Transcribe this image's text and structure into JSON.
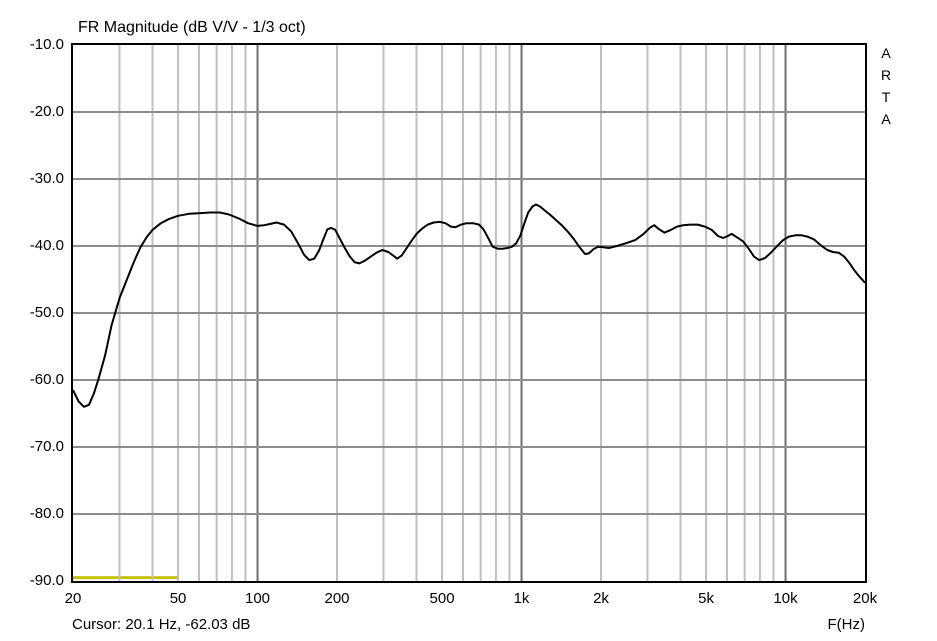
{
  "window": {
    "app": "ARTA",
    "brand_letters": [
      "A",
      "R",
      "T",
      "A"
    ]
  },
  "title": "FR Magnitude (dB V/V - 1/3 oct)",
  "status": {
    "cursor_text": "Cursor: 20.1 Hz, -62.03 dB"
  },
  "colors": {
    "background": "#ffffff",
    "border": "#000000",
    "grid_minor": "#c0c0c0",
    "grid_decade": "#6e6e6e",
    "grid_horizontal": "#8c8c8c",
    "curve": "#000000",
    "overlay": "#c3c30a"
  },
  "axes": {
    "x": {
      "unit_label": "F(Hz)",
      "scale": "log",
      "min": 20,
      "max": 20000,
      "ticks": [
        {
          "f": 20,
          "label": "20"
        },
        {
          "f": 50,
          "label": "50"
        },
        {
          "f": 100,
          "label": "100"
        },
        {
          "f": 200,
          "label": "200"
        },
        {
          "f": 500,
          "label": "500"
        },
        {
          "f": 1000,
          "label": "1k"
        },
        {
          "f": 2000,
          "label": "2k"
        },
        {
          "f": 5000,
          "label": "5k"
        },
        {
          "f": 10000,
          "label": "10k"
        },
        {
          "f": 20000,
          "label": "20k"
        }
      ],
      "minor_gridlines": [
        30,
        40,
        50,
        60,
        70,
        80,
        90,
        200,
        300,
        400,
        500,
        600,
        700,
        800,
        900,
        2000,
        3000,
        4000,
        5000,
        6000,
        7000,
        8000,
        9000
      ],
      "decade_gridlines": [
        100,
        1000,
        10000
      ]
    },
    "y": {
      "unit": "dB",
      "min": -90,
      "max": -10,
      "ticks": [
        {
          "v": -10,
          "label": "-10.0"
        },
        {
          "v": -20,
          "label": "-20.0"
        },
        {
          "v": -30,
          "label": "-30.0"
        },
        {
          "v": -40,
          "label": "-40.0"
        },
        {
          "v": -50,
          "label": "-50.0"
        },
        {
          "v": -60,
          "label": "-60.0"
        },
        {
          "v": -70,
          "label": "-70.0"
        },
        {
          "v": -80,
          "label": "-80.0"
        },
        {
          "v": -90,
          "label": "-90.0"
        }
      ],
      "gridlines": [
        -20,
        -30,
        -40,
        -50,
        -60,
        -70,
        -80
      ]
    }
  },
  "chart_data": {
    "type": "line",
    "title": "FR Magnitude (dB V/V - 1/3 oct)",
    "xlabel": "F(Hz)",
    "ylabel": "dB V/V",
    "x_scale": "log",
    "xlim": [
      20,
      20000
    ],
    "ylim": [
      -90,
      -10
    ],
    "grid": true,
    "cursor": {
      "freq_hz": 20.1,
      "level_db": -62.03
    },
    "series": [
      {
        "name": "fr-magnitude",
        "color": "#000000",
        "width": 2,
        "layer": "over",
        "points": [
          [
            20,
            -61.5
          ],
          [
            21,
            -63.2
          ],
          [
            22,
            -64.0
          ],
          [
            23,
            -63.7
          ],
          [
            24,
            -62.0
          ],
          [
            25,
            -59.8
          ],
          [
            26.5,
            -56.2
          ],
          [
            28,
            -51.8
          ],
          [
            30,
            -47.8
          ],
          [
            32,
            -45.0
          ],
          [
            34,
            -42.4
          ],
          [
            36,
            -40.2
          ],
          [
            38,
            -38.7
          ],
          [
            40,
            -37.6
          ],
          [
            43,
            -36.6
          ],
          [
            46,
            -36.0
          ],
          [
            50,
            -35.5
          ],
          [
            55,
            -35.2
          ],
          [
            60,
            -35.1
          ],
          [
            66,
            -35.0
          ],
          [
            72,
            -35.0
          ],
          [
            78,
            -35.3
          ],
          [
            85,
            -35.9
          ],
          [
            92,
            -36.6
          ],
          [
            100,
            -37.0
          ],
          [
            106,
            -36.9
          ],
          [
            112,
            -36.7
          ],
          [
            118,
            -36.5
          ],
          [
            126,
            -36.8
          ],
          [
            134,
            -37.8
          ],
          [
            142,
            -39.5
          ],
          [
            150,
            -41.3
          ],
          [
            157,
            -42.1
          ],
          [
            164,
            -41.9
          ],
          [
            171,
            -40.7
          ],
          [
            178,
            -38.9
          ],
          [
            184,
            -37.5
          ],
          [
            190,
            -37.3
          ],
          [
            197,
            -37.6
          ],
          [
            205,
            -38.9
          ],
          [
            214,
            -40.3
          ],
          [
            223,
            -41.5
          ],
          [
            233,
            -42.4
          ],
          [
            243,
            -42.6
          ],
          [
            255,
            -42.2
          ],
          [
            268,
            -41.6
          ],
          [
            282,
            -41.0
          ],
          [
            297,
            -40.6
          ],
          [
            313,
            -40.9
          ],
          [
            326,
            -41.4
          ],
          [
            338,
            -41.9
          ],
          [
            352,
            -41.4
          ],
          [
            366,
            -40.4
          ],
          [
            382,
            -39.3
          ],
          [
            400,
            -38.2
          ],
          [
            420,
            -37.4
          ],
          [
            442,
            -36.8
          ],
          [
            465,
            -36.5
          ],
          [
            490,
            -36.4
          ],
          [
            515,
            -36.6
          ],
          [
            540,
            -37.1
          ],
          [
            562,
            -37.2
          ],
          [
            590,
            -36.8
          ],
          [
            620,
            -36.6
          ],
          [
            655,
            -36.6
          ],
          [
            690,
            -36.8
          ],
          [
            718,
            -37.5
          ],
          [
            748,
            -38.8
          ],
          [
            778,
            -40.1
          ],
          [
            812,
            -40.4
          ],
          [
            848,
            -40.4
          ],
          [
            885,
            -40.3
          ],
          [
            920,
            -40.1
          ],
          [
            955,
            -39.6
          ],
          [
            990,
            -38.4
          ],
          [
            1025,
            -36.6
          ],
          [
            1060,
            -35.0
          ],
          [
            1100,
            -34.1
          ],
          [
            1135,
            -33.8
          ],
          [
            1175,
            -34.1
          ],
          [
            1225,
            -34.7
          ],
          [
            1280,
            -35.3
          ],
          [
            1340,
            -36.0
          ],
          [
            1420,
            -36.9
          ],
          [
            1500,
            -37.9
          ],
          [
            1580,
            -39.0
          ],
          [
            1660,
            -40.2
          ],
          [
            1740,
            -41.2
          ],
          [
            1800,
            -41.1
          ],
          [
            1870,
            -40.5
          ],
          [
            1950,
            -40.1
          ],
          [
            2040,
            -40.2
          ],
          [
            2140,
            -40.3
          ],
          [
            2300,
            -40.0
          ],
          [
            2480,
            -39.6
          ],
          [
            2700,
            -39.1
          ],
          [
            2900,
            -38.2
          ],
          [
            3080,
            -37.2
          ],
          [
            3180,
            -36.9
          ],
          [
            3320,
            -37.5
          ],
          [
            3480,
            -38.0
          ],
          [
            3680,
            -37.6
          ],
          [
            3880,
            -37.1
          ],
          [
            4100,
            -36.9
          ],
          [
            4350,
            -36.8
          ],
          [
            4650,
            -36.8
          ],
          [
            4950,
            -37.1
          ],
          [
            5250,
            -37.6
          ],
          [
            5550,
            -38.5
          ],
          [
            5800,
            -38.8
          ],
          [
            6050,
            -38.5
          ],
          [
            6250,
            -38.2
          ],
          [
            6550,
            -38.7
          ],
          [
            6900,
            -39.3
          ],
          [
            7250,
            -40.4
          ],
          [
            7600,
            -41.6
          ],
          [
            7950,
            -42.1
          ],
          [
            8350,
            -41.8
          ],
          [
            8800,
            -41.0
          ],
          [
            9300,
            -40.0
          ],
          [
            9800,
            -39.1
          ],
          [
            10300,
            -38.6
          ],
          [
            10900,
            -38.4
          ],
          [
            11500,
            -38.4
          ],
          [
            12100,
            -38.6
          ],
          [
            12800,
            -39.0
          ],
          [
            13600,
            -39.9
          ],
          [
            14400,
            -40.6
          ],
          [
            15100,
            -40.9
          ],
          [
            15900,
            -41.0
          ],
          [
            16700,
            -41.6
          ],
          [
            17500,
            -42.6
          ],
          [
            18200,
            -43.6
          ],
          [
            19000,
            -44.5
          ],
          [
            19600,
            -45.1
          ],
          [
            20000,
            -45.5
          ]
        ]
      },
      {
        "name": "overlay-floor-segment",
        "color": "#c3c30a",
        "width": 3,
        "layer": "under",
        "points": [
          [
            20,
            -89.5
          ],
          [
            50,
            -89.5
          ]
        ]
      }
    ]
  }
}
